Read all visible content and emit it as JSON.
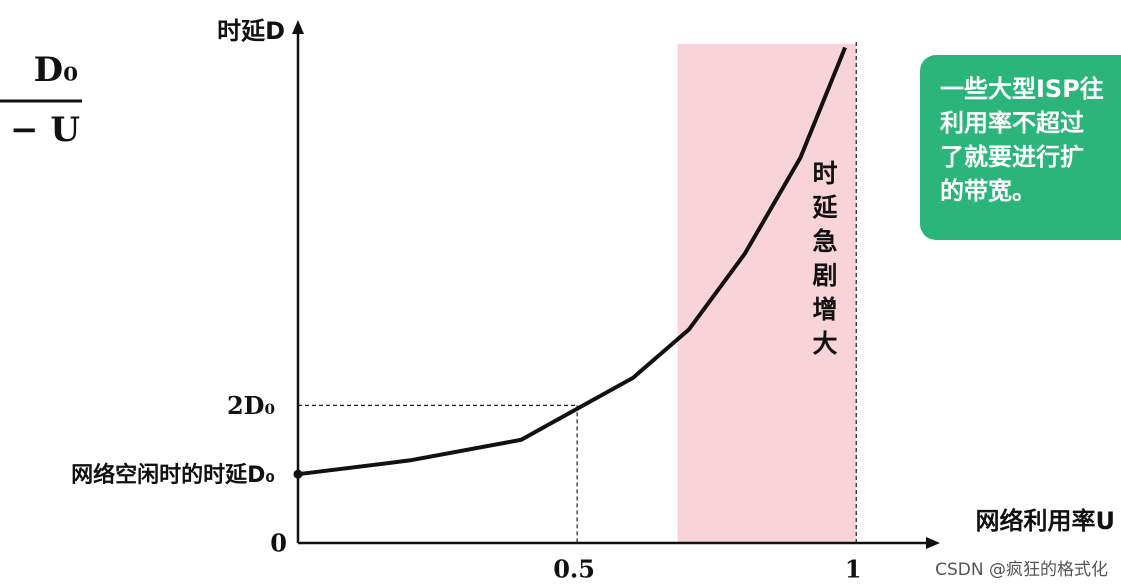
{
  "chart_data": {
    "type": "line",
    "y_label": "时延D",
    "x_label": "网络利用率U",
    "x": [
      0,
      0.2,
      0.4,
      0.5,
      0.6,
      0.7,
      0.8,
      0.9,
      0.98
    ],
    "y": [
      1,
      1.2,
      1.5,
      1.95,
      2.4,
      3.1,
      4.2,
      5.6,
      7.2
    ],
    "color": "#111111",
    "xlim": [
      0,
      1.15
    ],
    "ylim": [
      0,
      7.6
    ],
    "xticks": [
      0.5,
      1
    ],
    "yticks": [
      0,
      {
        "value": 1,
        "label": "网络空闲时的时延D₀"
      },
      {
        "value": 2,
        "label": "2D₀"
      }
    ],
    "highlight": {
      "from": 0.68,
      "to": 1,
      "label": "时延急剧增大",
      "color": "#f9d3da"
    }
  },
  "formula": {
    "numerator": "D₀",
    "denominator": "− U"
  },
  "callout": {
    "lines": [
      "一些大型ISP往",
      "利用率不超过",
      "了就要进行扩",
      "的带宽。"
    ],
    "color": "#2bb57a"
  },
  "watermark": "CSDN @疯狂的格式化"
}
